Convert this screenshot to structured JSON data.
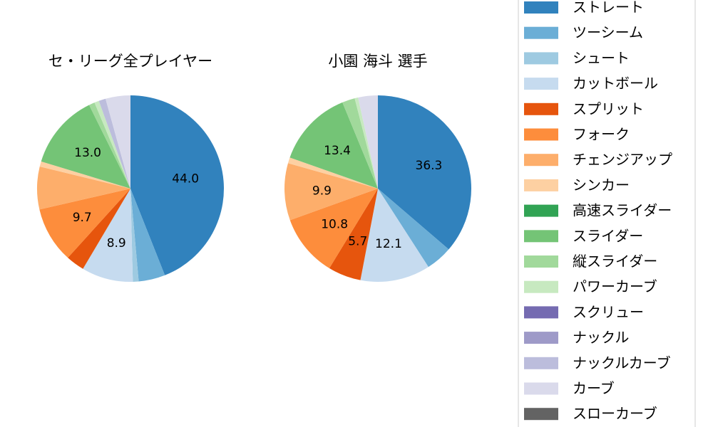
{
  "chart_data": [
    {
      "type": "pie",
      "title": "セ・リーグ全プレイヤー",
      "start_angle": 90,
      "direction": "clockwise",
      "slices": [
        {
          "name": "ストレート",
          "value": 44.0,
          "label": "44.0"
        },
        {
          "name": "ツーシーム",
          "value": 4.6,
          "label": null
        },
        {
          "name": "シュート",
          "value": 1.0,
          "label": null
        },
        {
          "name": "カットボール",
          "value": 8.9,
          "label": "8.9"
        },
        {
          "name": "スプリット",
          "value": 3.2,
          "label": null
        },
        {
          "name": "フォーク",
          "value": 9.7,
          "label": "9.7"
        },
        {
          "name": "チェンジアップ",
          "value": 7.4,
          "label": null
        },
        {
          "name": "シンカー",
          "value": 0.9,
          "label": null
        },
        {
          "name": "スライダー",
          "value": 13.0,
          "label": "13.0"
        },
        {
          "name": "縦スライダー",
          "value": 1.0,
          "label": null
        },
        {
          "name": "パワーカーブ",
          "value": 0.8,
          "label": null
        },
        {
          "name": "ナックルカーブ",
          "value": 1.2,
          "label": null
        },
        {
          "name": "カーブ",
          "value": 4.3,
          "label": null
        }
      ]
    },
    {
      "type": "pie",
      "title": "小園 海斗  選手",
      "start_angle": 90,
      "direction": "clockwise",
      "slices": [
        {
          "name": "ストレート",
          "value": 36.3,
          "label": "36.3"
        },
        {
          "name": "ツーシーム",
          "value": 4.6,
          "label": null
        },
        {
          "name": "カットボール",
          "value": 12.1,
          "label": "12.1"
        },
        {
          "name": "スプリット",
          "value": 5.7,
          "label": "5.7"
        },
        {
          "name": "フォーク",
          "value": 10.8,
          "label": "10.8"
        },
        {
          "name": "チェンジアップ",
          "value": 9.9,
          "label": "9.9"
        },
        {
          "name": "シンカー",
          "value": 1.0,
          "label": null
        },
        {
          "name": "スライダー",
          "value": 13.4,
          "label": "13.4"
        },
        {
          "name": "縦スライダー",
          "value": 2.2,
          "label": null
        },
        {
          "name": "パワーカーブ",
          "value": 0.6,
          "label": null
        },
        {
          "name": "カーブ",
          "value": 3.4,
          "label": null
        }
      ]
    }
  ],
  "legend": {
    "placement": "right",
    "entries": [
      {
        "name": "ストレート",
        "color": "#3182bd"
      },
      {
        "name": "ツーシーム",
        "color": "#6baed6"
      },
      {
        "name": "シュート",
        "color": "#9ecae1"
      },
      {
        "name": "カットボール",
        "color": "#c6dbef"
      },
      {
        "name": "スプリット",
        "color": "#e6550d"
      },
      {
        "name": "フォーク",
        "color": "#fd8d3c"
      },
      {
        "name": "チェンジアップ",
        "color": "#fdae6b"
      },
      {
        "name": "シンカー",
        "color": "#fdd0a2"
      },
      {
        "name": "高速スライダー",
        "color": "#31a354"
      },
      {
        "name": "スライダー",
        "color": "#74c476"
      },
      {
        "name": "縦スライダー",
        "color": "#a1d99b"
      },
      {
        "name": "パワーカーブ",
        "color": "#c7e9c0"
      },
      {
        "name": "スクリュー",
        "color": "#756bb1"
      },
      {
        "name": "ナックル",
        "color": "#9e9ac8"
      },
      {
        "name": "ナックルカーブ",
        "color": "#bcbddc"
      },
      {
        "name": "カーブ",
        "color": "#dadaeb"
      },
      {
        "name": "スローカーブ",
        "color": "#636363"
      }
    ]
  }
}
